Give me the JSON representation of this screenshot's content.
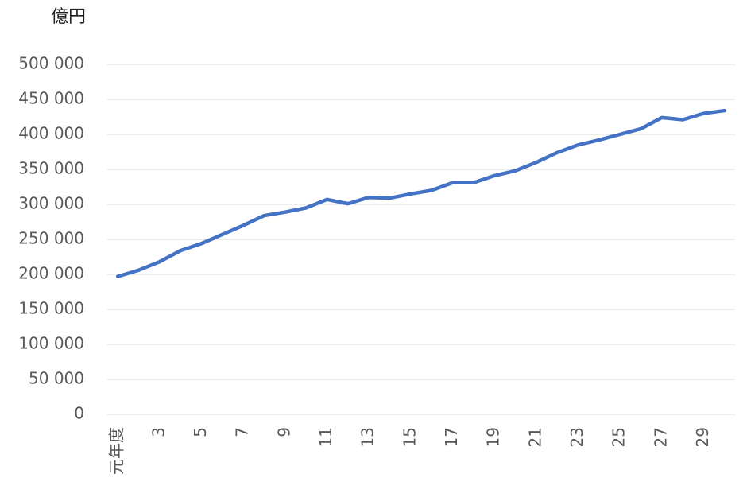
{
  "chart_data": {
    "type": "line",
    "y_unit": "億円",
    "categories": [
      "元年度",
      null,
      "3",
      null,
      "5",
      null,
      "7",
      null,
      "9",
      null,
      "11",
      null,
      "13",
      null,
      "15",
      null,
      "17",
      null,
      "19",
      null,
      "21",
      null,
      "23",
      null,
      "25",
      null,
      "27",
      null,
      "29",
      null
    ],
    "series": [
      {
        "color": "#4472c4",
        "values": [
          197000,
          206000,
          218000,
          234000,
          244000,
          257000,
          270000,
          284000,
          289000,
          295000,
          307000,
          301000,
          310000,
          309000,
          315000,
          320000,
          331000,
          331000,
          341000,
          348000,
          360000,
          374000,
          385000,
          392000,
          400000,
          408000,
          424000,
          421000,
          430000,
          434000
        ]
      }
    ],
    "ylim": [
      0,
      500000
    ],
    "yticks": [
      0,
      {
        "value": 50000,
        "label": "50 000"
      },
      {
        "value": 100000,
        "label": "100 000"
      },
      {
        "value": 150000,
        "label": "150 000"
      },
      {
        "value": 200000,
        "label": "200 000"
      },
      {
        "value": 250000,
        "label": "250 000"
      },
      {
        "value": 300000,
        "label": "300 000"
      },
      {
        "value": 350000,
        "label": "350 000"
      },
      {
        "value": 400000,
        "label": "400 000"
      },
      {
        "value": 450000,
        "label": "450 000"
      },
      {
        "value": 500000,
        "label": "500 000"
      }
    ],
    "grid": true
  }
}
